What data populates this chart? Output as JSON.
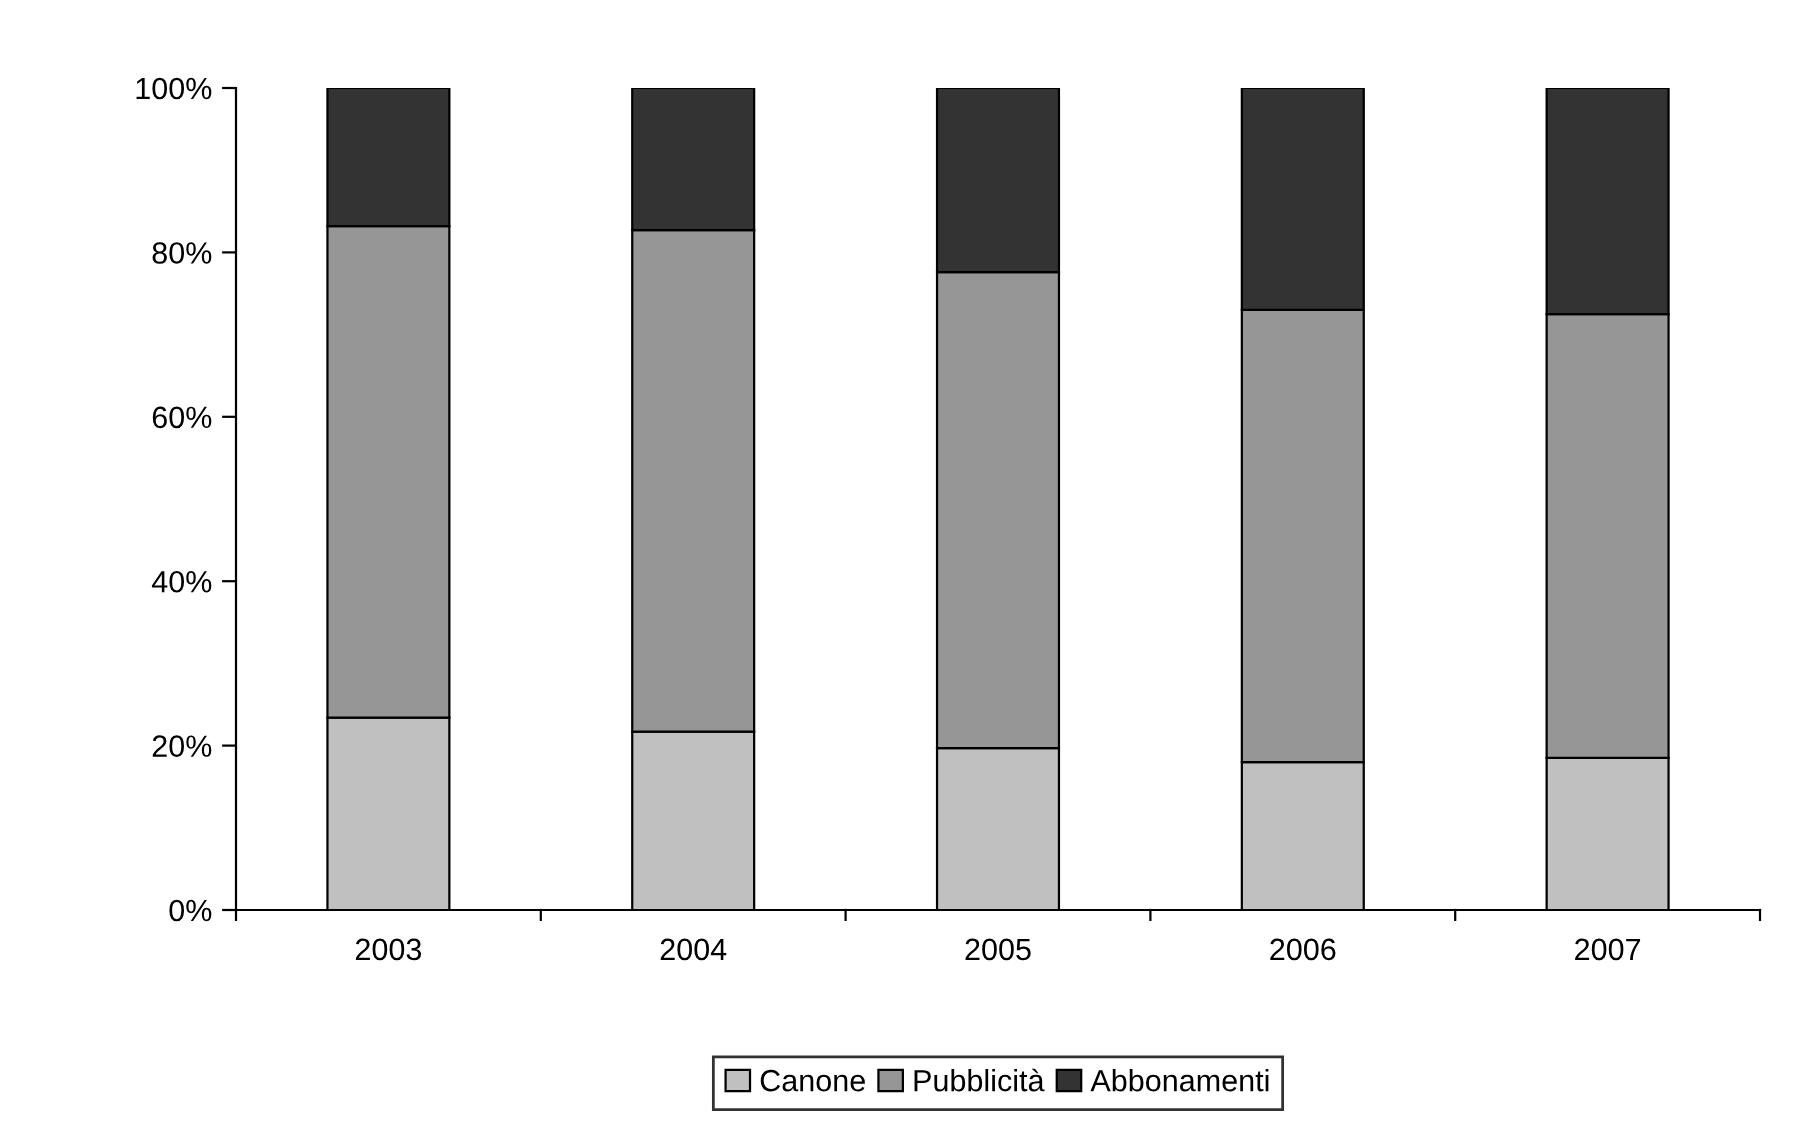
{
  "chart_data": {
    "type": "bar",
    "stacked": true,
    "categories": [
      "2003",
      "2004",
      "2005",
      "2006",
      "2007"
    ],
    "series": [
      {
        "name": "Canone",
        "color": "#c0c0c0",
        "values": [
          23.4,
          21.7,
          19.7,
          18.0,
          18.5
        ]
      },
      {
        "name": "Pubblicità",
        "color": "#969696",
        "values": [
          59.8,
          61.0,
          57.9,
          55.0,
          54.0
        ]
      },
      {
        "name": "Abbonamenti",
        "color": "#333333",
        "values": [
          16.8,
          17.3,
          22.4,
          27.0,
          27.5
        ]
      }
    ],
    "ylim": [
      0,
      100
    ],
    "yticks": [
      {
        "value": 0,
        "label": "0%"
      },
      {
        "value": 20,
        "label": "20%"
      },
      {
        "value": 40,
        "label": "40%"
      },
      {
        "value": 60,
        "label": "60%"
      },
      {
        "value": 80,
        "label": "80%"
      },
      {
        "value": 100,
        "label": "100%"
      }
    ],
    "grid": false,
    "legend": "bottom"
  }
}
